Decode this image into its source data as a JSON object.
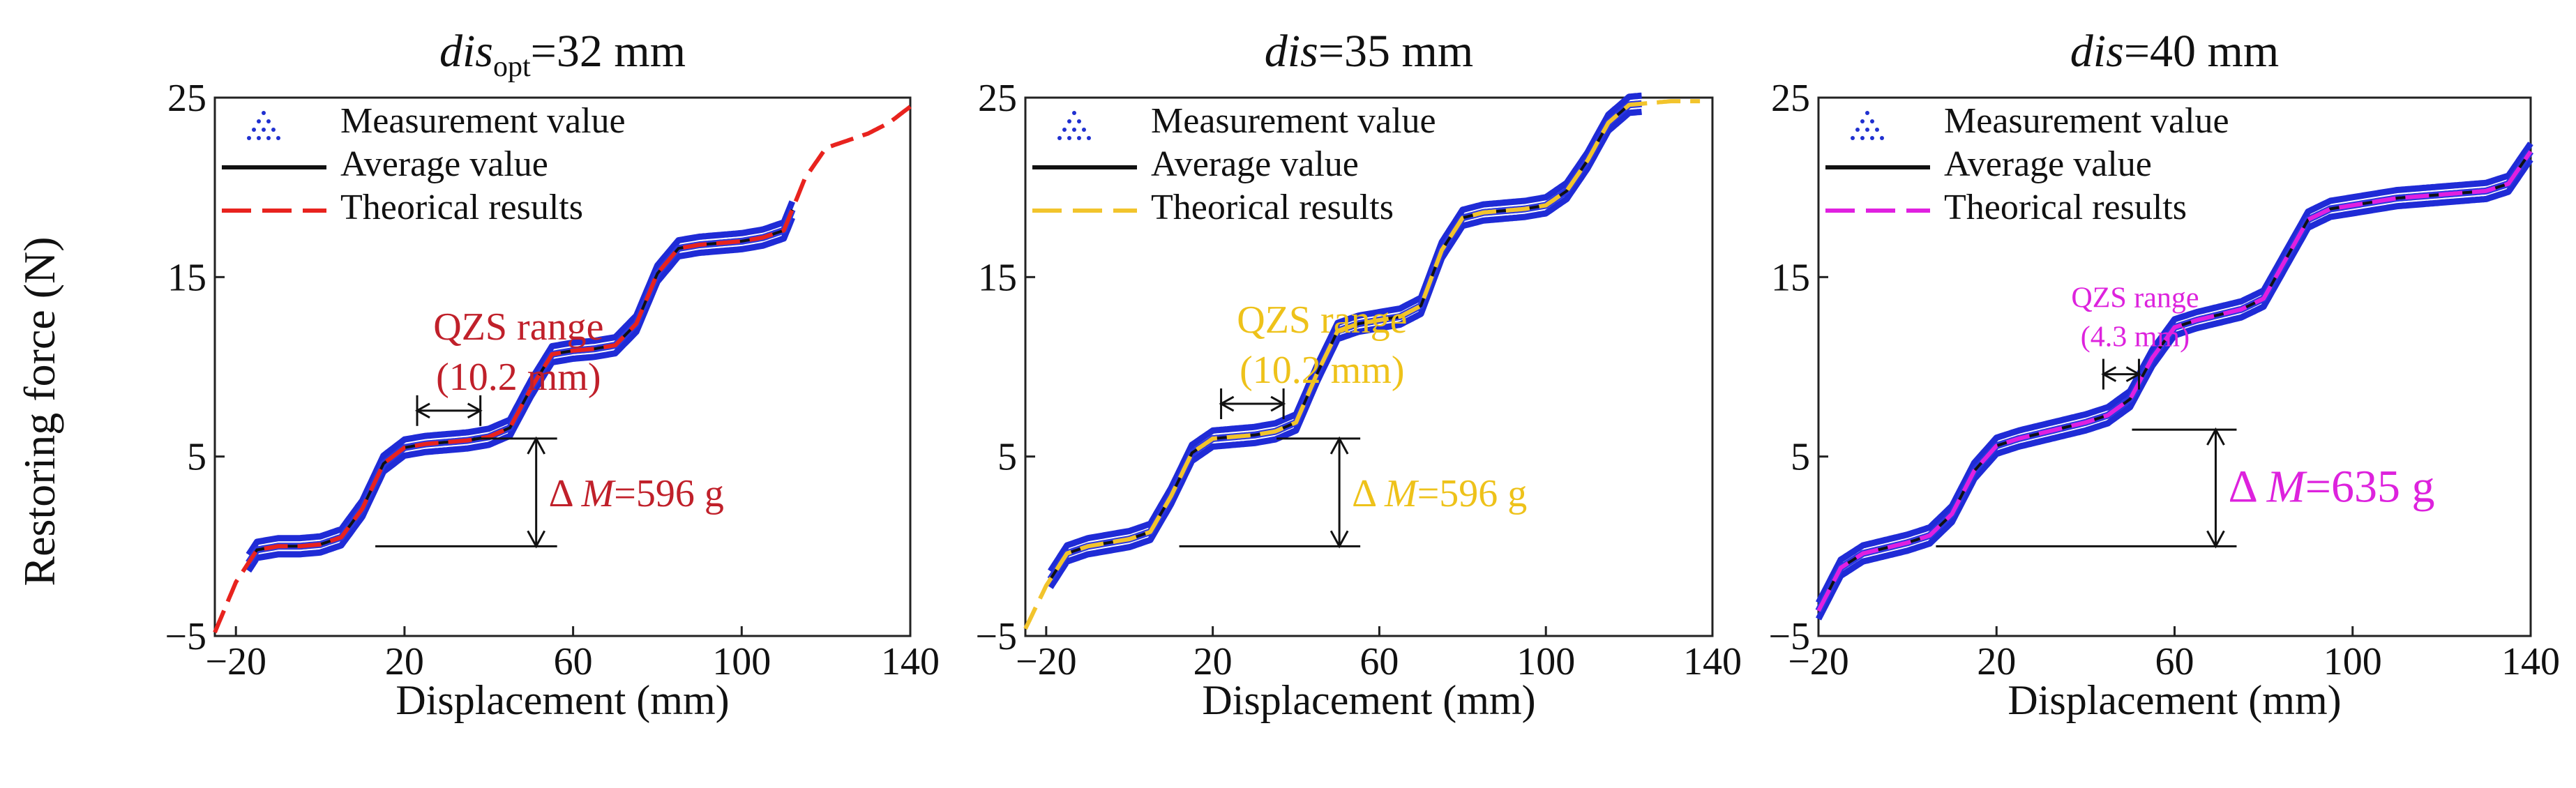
{
  "figure": {
    "ylabel": "Restoring force (N)",
    "xlabel": "Displacement (mm)"
  },
  "chart_data": [
    {
      "type": "line",
      "title_main": "dis",
      "title_sub": "opt",
      "title_rest": "=32 mm",
      "xlim": [
        -25,
        140
      ],
      "ylim": [
        -5,
        25
      ],
      "xticks": [
        -20,
        20,
        60,
        100,
        140
      ],
      "yticks": [
        -5,
        5,
        15,
        25
      ],
      "xlabel": "Displacement (mm)",
      "ylabel": "Restoring force (N)",
      "legend": [
        "Measurement value",
        "Average value",
        "Theorical results"
      ],
      "theory_color": "#e8231e",
      "annot_color": "#c0202a",
      "measured_range": [
        -17,
        112
      ],
      "theory_range": [
        -25,
        140
      ],
      "series": [
        {
          "name": "Theorical results",
          "x": [
            -25,
            -20,
            -15,
            -10,
            -5,
            0,
            5,
            10,
            15,
            20,
            25,
            30,
            35,
            40,
            45,
            50,
            55,
            60,
            65,
            70,
            75,
            80,
            85,
            90,
            95,
            100,
            105,
            110,
            115,
            120,
            125,
            130,
            135,
            140
          ],
          "values": [
            -4.8,
            -2.0,
            -0.2,
            0.0,
            0.0,
            0.1,
            0.5,
            2.1,
            4.6,
            5.5,
            5.7,
            5.8,
            5.9,
            6.1,
            6.6,
            8.8,
            10.7,
            10.9,
            11.0,
            11.2,
            12.4,
            15.2,
            16.6,
            16.8,
            16.9,
            17.0,
            17.2,
            17.6,
            20.5,
            22.2,
            22.6,
            23.0,
            23.6,
            24.5
          ]
        }
      ],
      "qzs_label": "QZS range",
      "qzs_value": "(10.2 mm)",
      "qzs_span": [
        23,
        38
      ],
      "delta_prefix": "Δ ",
      "delta_var": "M",
      "delta_value": "=596 g",
      "delta_levels": [
        0,
        6
      ]
    },
    {
      "type": "line",
      "title_main": "dis",
      "title_sub": "",
      "title_rest": "=35 mm",
      "xlim": [
        -25,
        140
      ],
      "ylim": [
        -5,
        25
      ],
      "xticks": [
        -20,
        20,
        60,
        100,
        140
      ],
      "yticks": [
        -5,
        5,
        15,
        25
      ],
      "xlabel": "Displacement (mm)",
      "ylabel": "",
      "legend": [
        "Measurement value",
        "Average value",
        "Theorical results"
      ],
      "theory_color": "#f2c42c",
      "annot_color": "#eec21a",
      "measured_range": [
        -19,
        123
      ],
      "theory_range": [
        -25,
        137
      ],
      "series": [
        {
          "name": "Theorical results",
          "x": [
            -25,
            -20,
            -15,
            -10,
            -5,
            0,
            5,
            10,
            15,
            20,
            25,
            30,
            35,
            40,
            45,
            50,
            55,
            60,
            65,
            70,
            75,
            80,
            85,
            90,
            95,
            100,
            105,
            110,
            115,
            120,
            125,
            130,
            135,
            140
          ],
          "values": [
            -4.6,
            -2.2,
            -0.4,
            0.0,
            0.2,
            0.4,
            0.8,
            2.8,
            5.2,
            6.0,
            6.1,
            6.2,
            6.4,
            6.9,
            9.6,
            12.0,
            12.4,
            12.6,
            12.8,
            13.4,
            16.5,
            18.3,
            18.6,
            18.7,
            18.8,
            19.0,
            19.8,
            21.5,
            23.6,
            24.6,
            24.7,
            24.8,
            24.8,
            24.8
          ]
        }
      ],
      "qzs_label": "QZS range",
      "qzs_value": "(10.2 mm)",
      "qzs_span": [
        22,
        37
      ],
      "delta_prefix": "Δ ",
      "delta_var": "M",
      "delta_value": "=596 g",
      "delta_levels": [
        0,
        6
      ]
    },
    {
      "type": "line",
      "title_main": "dis",
      "title_sub": "",
      "title_rest": "=40 mm",
      "xlim": [
        -20,
        140
      ],
      "ylim": [
        -5,
        25
      ],
      "xticks": [
        -20,
        20,
        60,
        100,
        140
      ],
      "yticks": [
        -5,
        5,
        15,
        25
      ],
      "xlabel": "Displacement (mm)",
      "ylabel": "",
      "legend": [
        "Measurement value",
        "Average value",
        "Theorical results"
      ],
      "theory_color": "#e020e0",
      "annot_color": "#dd22dd",
      "measured_range": [
        -20,
        140
      ],
      "theory_range": [
        -20,
        140
      ],
      "series": [
        {
          "name": "Theorical results",
          "x": [
            -20,
            -15,
            -10,
            -5,
            0,
            5,
            10,
            15,
            20,
            25,
            30,
            35,
            40,
            45,
            50,
            55,
            60,
            65,
            70,
            75,
            80,
            85,
            90,
            95,
            100,
            105,
            110,
            115,
            120,
            125,
            130,
            135,
            140
          ],
          "values": [
            -3.6,
            -1.2,
            -0.4,
            -0.1,
            0.2,
            0.6,
            1.8,
            4.2,
            5.6,
            6.0,
            6.3,
            6.6,
            6.9,
            7.3,
            8.2,
            10.5,
            12.2,
            12.6,
            12.9,
            13.2,
            13.8,
            16.0,
            18.2,
            18.8,
            19.0,
            19.2,
            19.4,
            19.5,
            19.6,
            19.7,
            19.8,
            20.2,
            22.0
          ]
        }
      ],
      "qzs_label": "QZS range",
      "qzs_value": "(4.3 mm)",
      "qzs_span": [
        44,
        52
      ],
      "delta_prefix": "Δ ",
      "delta_var": "M",
      "delta_value": "=635 g",
      "delta_levels": [
        0,
        6.5
      ]
    }
  ]
}
